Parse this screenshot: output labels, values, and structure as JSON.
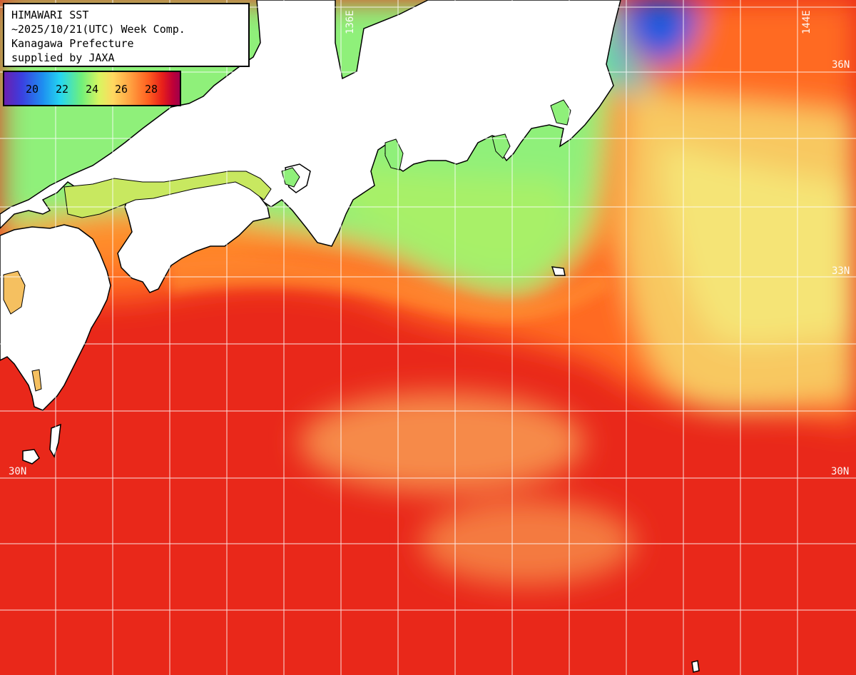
{
  "title": {
    "line1": "HIMAWARI SST",
    "line2": "~2025/10/21(UTC) Week Comp.",
    "line3": "Kanagawa Prefecture",
    "line4": "supplied by JAXA"
  },
  "legend": {
    "labels": [
      "20",
      "22",
      "24",
      "26",
      "28"
    ],
    "colors": {
      "c20": "#3b3fe0",
      "c22": "#26d6f0",
      "c24": "#d8f560",
      "c26": "#ffa040",
      "c28": "#e8201a"
    }
  },
  "grid_labels": {
    "lon_136": "136E",
    "lon_144": "144E",
    "lat_36_right": "36N",
    "lat_33_right": "33N",
    "lat_30_left": "30N",
    "lat_30_right": "30N"
  },
  "colors": {
    "land": "#ffffff",
    "coast": "#000000",
    "grid": "#ffffff",
    "sea_warm": "#e9281a",
    "sea_orange": "#ff7a2a",
    "sea_yellow": "#f5e070",
    "sea_green": "#8ff07a",
    "sea_cold": "#1a5ae0"
  }
}
